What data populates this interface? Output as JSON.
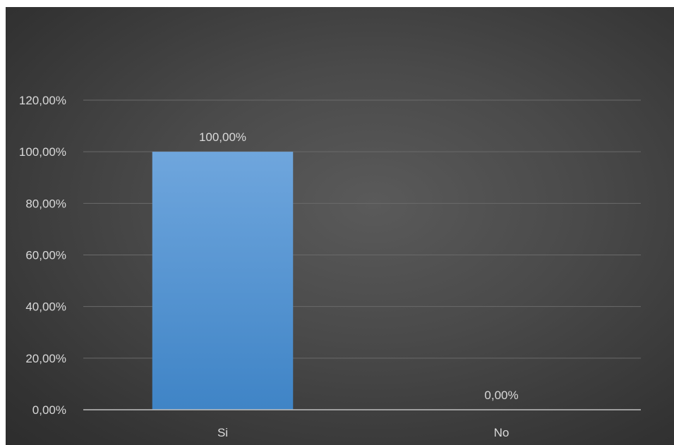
{
  "chart_data": {
    "type": "bar",
    "categories": [
      "Si",
      "No"
    ],
    "values": [
      100,
      0
    ],
    "data_labels": [
      "100,00%",
      "0,00%"
    ],
    "ylim": [
      0,
      120
    ],
    "y_ticks": [
      0,
      20,
      40,
      60,
      80,
      100,
      120
    ],
    "y_tick_labels": [
      "0,00%",
      "20,00%",
      "40,00%",
      "60,00%",
      "80,00%",
      "100,00%",
      "120,00%"
    ],
    "title": "",
    "xlabel": "",
    "ylabel": "",
    "grid": true,
    "legend": "none",
    "colors": {
      "bar_top": "#6fa6dd",
      "bar_bottom": "#3f84c6",
      "gridline": "#6a6a6a",
      "axis_line": "#bfbfbf",
      "text": "#d9d9d9"
    }
  }
}
